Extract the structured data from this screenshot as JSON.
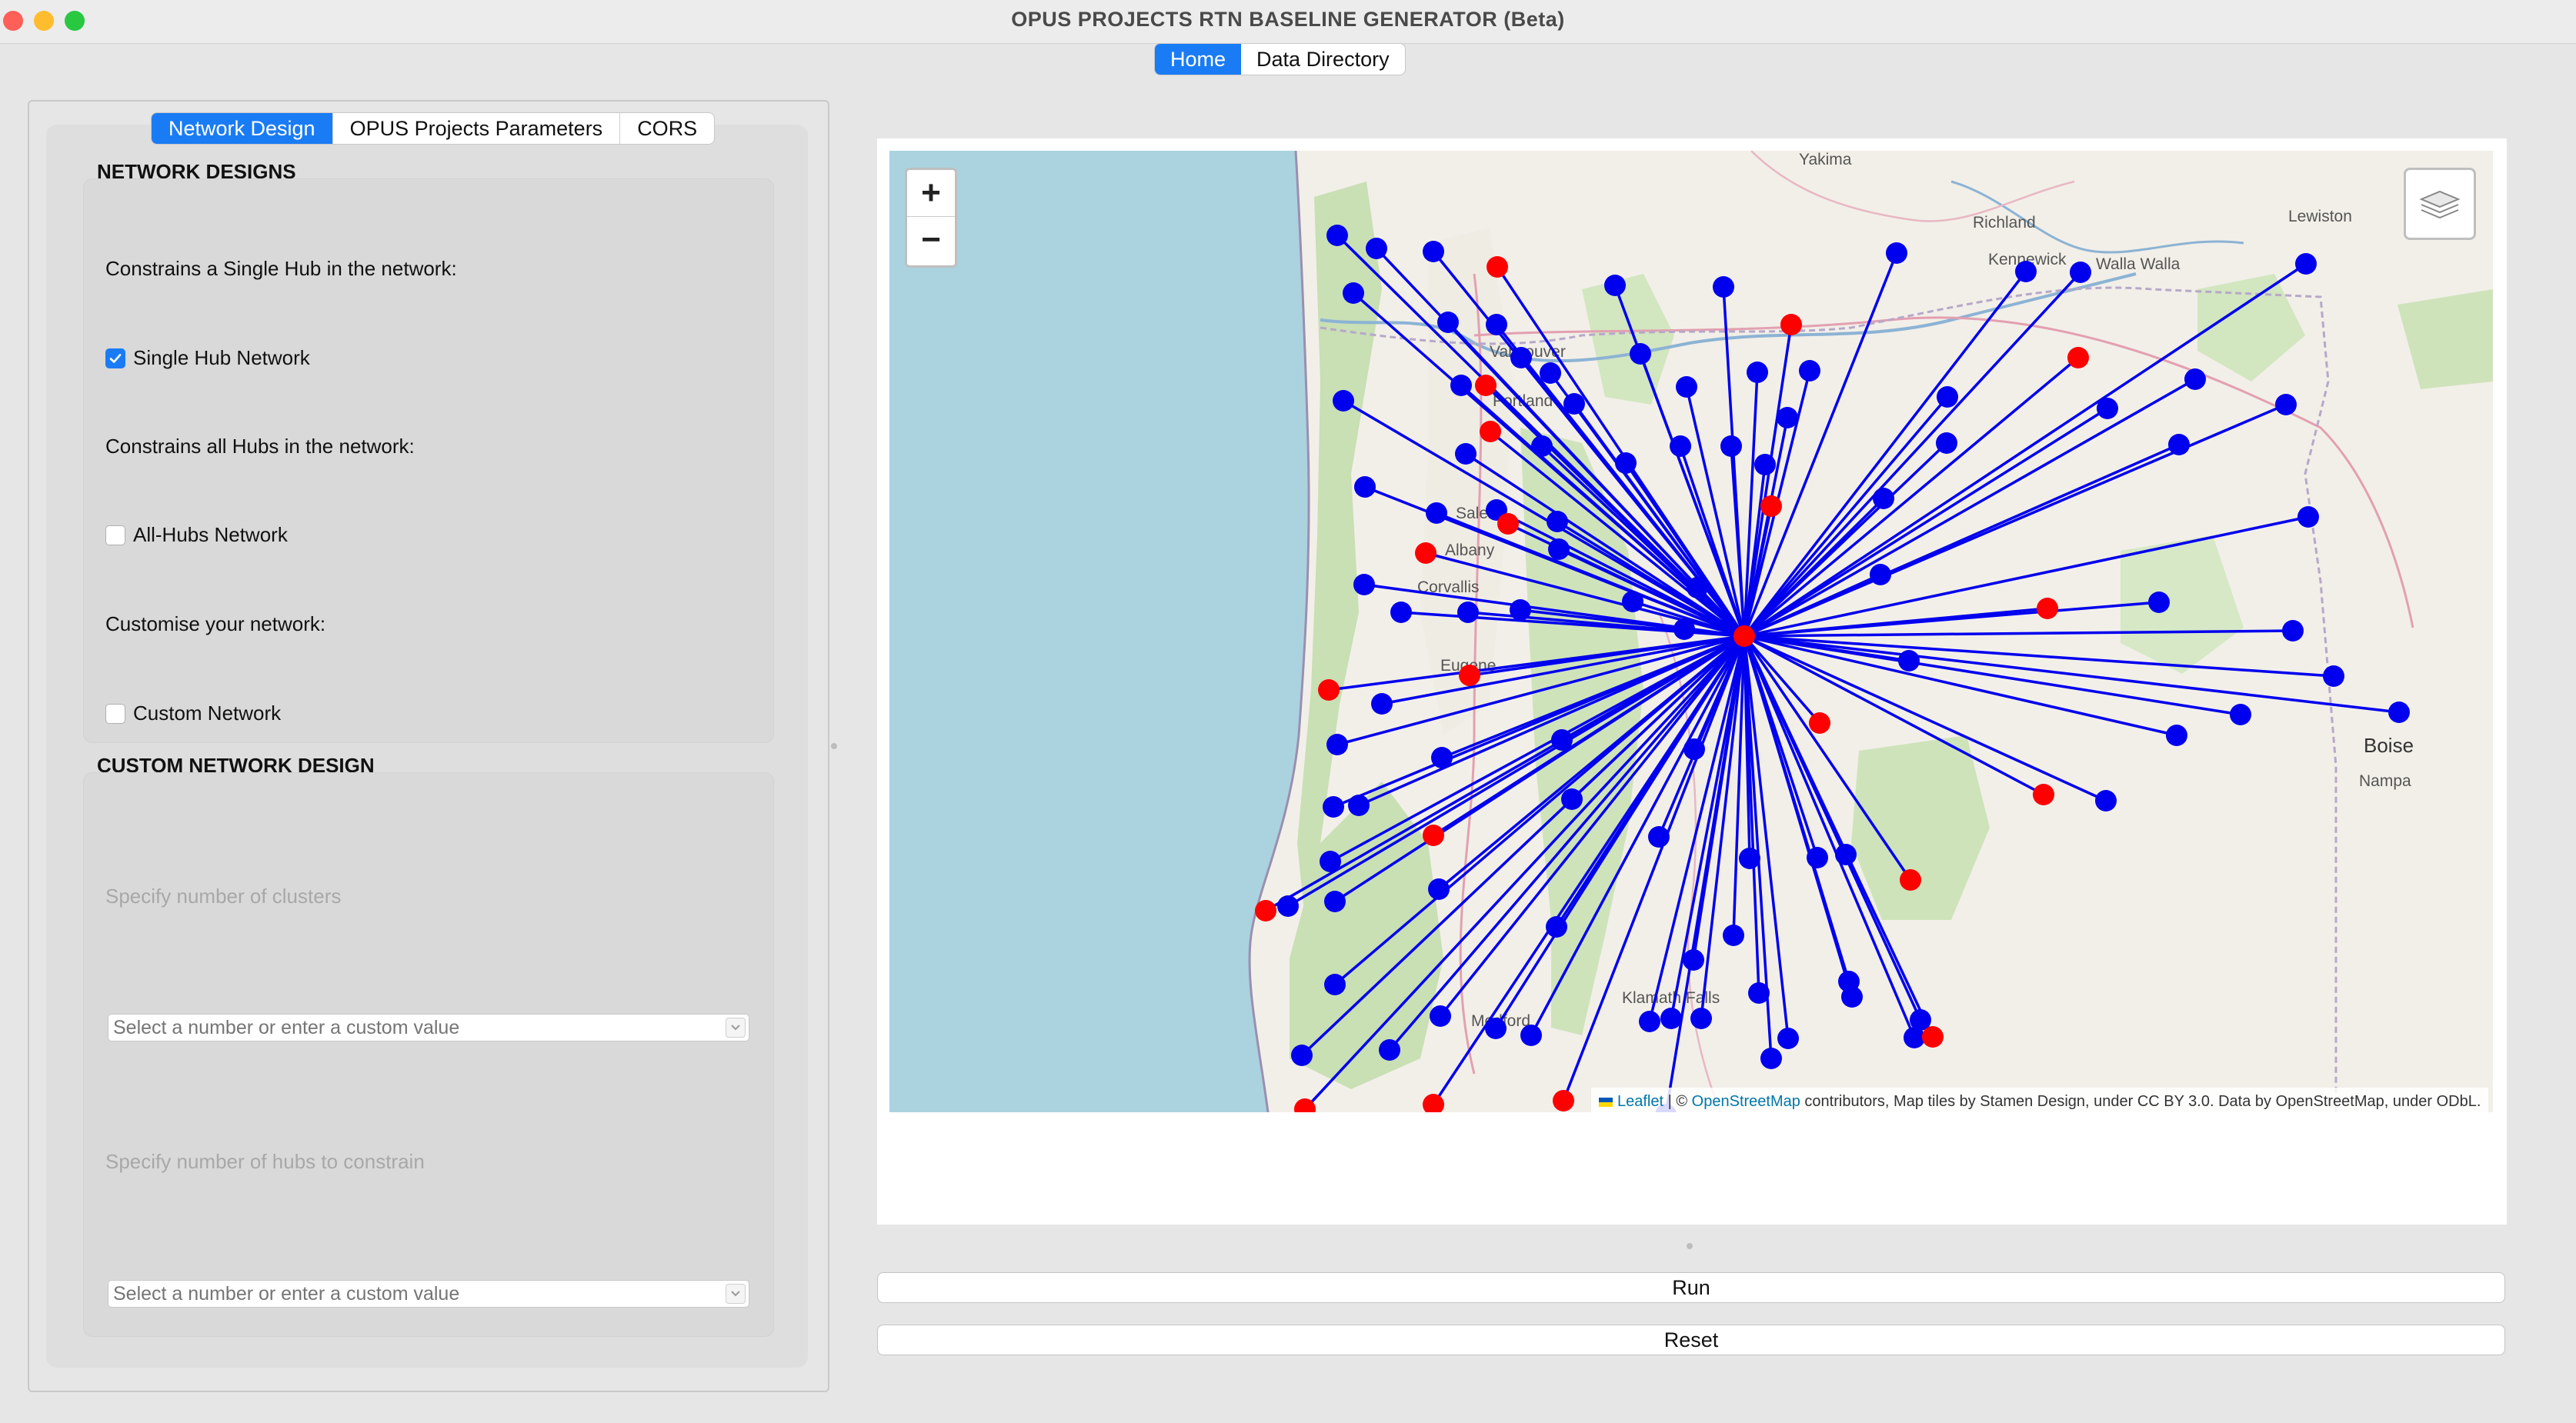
{
  "window": {
    "title": "OPUS PROJECTS RTN BASELINE GENERATOR (Beta)"
  },
  "top_tabs": [
    {
      "label": "Home",
      "active": true
    },
    {
      "label": "Data Directory",
      "active": false
    }
  ],
  "left_tabs": [
    {
      "label": "Network Design",
      "active": true
    },
    {
      "label": "OPUS Projects Parameters",
      "active": false
    },
    {
      "label": "CORS",
      "active": false
    }
  ],
  "network_designs": {
    "heading": "NETWORK DESIGNS",
    "single_hub_desc": "Constrains a Single Hub in the network:",
    "single_hub_label": "Single Hub Network",
    "single_hub_checked": true,
    "all_hubs_desc": "Constrains all Hubs in the network:",
    "all_hubs_label": "All-Hubs Network",
    "all_hubs_checked": false,
    "custom_desc": "Customise your network:",
    "custom_label": "Custom Network",
    "custom_checked": false
  },
  "custom_design": {
    "heading": "CUSTOM NETWORK DESIGN",
    "clusters_label": "Specify number of clusters",
    "clusters_placeholder": "Select a number or enter a custom value",
    "hubs_label": "Specify number of hubs to constrain",
    "hubs_placeholder": "Select a number or enter a custom value"
  },
  "map": {
    "zoom_in": "+",
    "zoom_out": "−",
    "places": [
      "Yakima",
      "Richland",
      "Kennewick",
      "Walla Walla",
      "Lewiston",
      "Vancouver",
      "Portland",
      "Salem",
      "Albany",
      "Corvallis",
      "Eugene",
      "Boise",
      "Nampa",
      "Klamath Falls",
      "Medford"
    ],
    "attribution": {
      "leaflet": "Leaflet",
      "sep": " | © ",
      "osm": "OpenStreetMap",
      "rest": " contributors, Map tiles by Stamen Design, under CC BY 3.0. Data by OpenStreetMap, under ODbL."
    },
    "hub_color": "#ff0000",
    "station_color": "#0000ee",
    "line_color": "#0000ee"
  },
  "actions": {
    "run": "Run",
    "reset": "Reset"
  }
}
